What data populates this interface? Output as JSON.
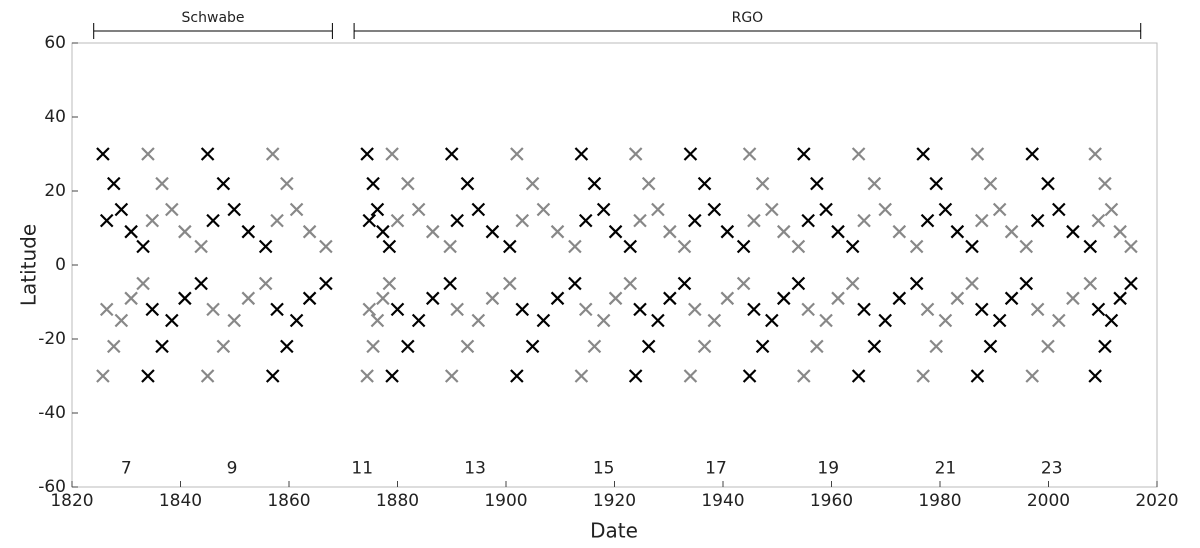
{
  "chart_data": {
    "type": "scatter",
    "xlabel": "Date",
    "ylabel": "Latitude",
    "xlim": [
      1820,
      2020
    ],
    "xticks": [
      1820,
      1840,
      1860,
      1880,
      1900,
      1920,
      1940,
      1960,
      1980,
      2000,
      2020
    ],
    "ylim": [
      -60,
      60
    ],
    "yticks": [
      -60,
      -40,
      -20,
      0,
      20,
      40,
      60
    ],
    "marker": "x",
    "series": [
      {
        "color": "#000000",
        "x": [
          1825.7,
          1826.4,
          1827.7,
          1829.1,
          1830.9,
          1833.1,
          1845,
          1846,
          1847.9,
          1849.9,
          1852.5,
          1855.7,
          1874.4,
          1874.8,
          1875.5,
          1876.3,
          1877.3,
          1878.5,
          1890,
          1891,
          1892.9,
          1894.9,
          1897.5,
          1900.7,
          1913.9,
          1914.7,
          1916.3,
          1918,
          1920.2,
          1922.9,
          1934,
          1934.8,
          1936.6,
          1938.4,
          1940.8,
          1943.8,
          1954.9,
          1955.7,
          1957.3,
          1959,
          1961.2,
          1963.9,
          1976.9,
          1977.7,
          1979.3,
          1981,
          1983.2,
          1985.9,
          1997,
          1998,
          1999.9,
          2001.9,
          2004.5,
          2007.7,
          1834,
          1834.8,
          1836.6,
          1838.4,
          1840.8,
          1843.8,
          1857,
          1857.8,
          1859.6,
          1861.4,
          1863.8,
          1866.8,
          1879,
          1880,
          1881.9,
          1883.9,
          1886.5,
          1889.7,
          1902,
          1903,
          1904.9,
          1906.9,
          1909.5,
          1912.7,
          1923.9,
          1924.7,
          1926.3,
          1928,
          1930.2,
          1932.9,
          1944.9,
          1945.7,
          1947.3,
          1949,
          1951.2,
          1953.9,
          1965,
          1966,
          1967.9,
          1969.9,
          1972.5,
          1975.7,
          1986.9,
          1987.7,
          1989.3,
          1991,
          1993.2,
          1995.9,
          2008.6,
          2009.2,
          2010.4,
          2011.6,
          2013.2,
          2015.2
        ],
        "values": [
          30,
          12,
          22,
          15,
          9,
          5,
          30,
          12,
          22,
          15,
          9,
          5,
          30,
          12,
          22,
          15,
          9,
          5,
          30,
          12,
          22,
          15,
          9,
          5,
          30,
          12,
          22,
          15,
          9,
          5,
          30,
          12,
          22,
          15,
          9,
          5,
          30,
          12,
          22,
          15,
          9,
          5,
          30,
          12,
          22,
          15,
          9,
          5,
          30,
          12,
          22,
          15,
          9,
          5,
          -30,
          -12,
          -22,
          -15,
          -9,
          -5,
          -30,
          -12,
          -22,
          -15,
          -9,
          -5,
          -30,
          -12,
          -22,
          -15,
          -9,
          -5,
          -30,
          -12,
          -22,
          -15,
          -9,
          -5,
          -30,
          -12,
          -22,
          -15,
          -9,
          -5,
          -30,
          -12,
          -22,
          -15,
          -9,
          -5,
          -30,
          -12,
          -22,
          -15,
          -9,
          -5,
          -30,
          -12,
          -22,
          -15,
          -9,
          -5,
          -30,
          -12,
          -22,
          -15,
          -9,
          -5
        ]
      },
      {
        "color": "#888888",
        "x": [
          1834,
          1834.8,
          1836.6,
          1838.4,
          1840.8,
          1843.8,
          1857,
          1857.8,
          1859.6,
          1861.4,
          1863.8,
          1866.8,
          1879,
          1880,
          1881.9,
          1883.9,
          1886.5,
          1889.7,
          1902,
          1903,
          1904.9,
          1906.9,
          1909.5,
          1912.7,
          1923.9,
          1924.7,
          1926.3,
          1928,
          1930.2,
          1932.9,
          1944.9,
          1945.7,
          1947.3,
          1949,
          1951.2,
          1953.9,
          1965,
          1966,
          1967.9,
          1969.9,
          1972.5,
          1975.7,
          1986.9,
          1987.7,
          1989.3,
          1991,
          1993.2,
          1995.9,
          2008.6,
          2009.2,
          2010.4,
          2011.6,
          2013.2,
          2015.2,
          1825.7,
          1826.4,
          1827.7,
          1829.1,
          1830.9,
          1833.1,
          1845,
          1846,
          1847.9,
          1849.9,
          1852.5,
          1855.7,
          1874.4,
          1874.8,
          1875.5,
          1876.3,
          1877.3,
          1878.5,
          1890,
          1891,
          1892.9,
          1894.9,
          1897.5,
          1900.7,
          1913.9,
          1914.7,
          1916.3,
          1918,
          1920.2,
          1922.9,
          1934,
          1934.8,
          1936.6,
          1938.4,
          1940.8,
          1943.8,
          1954.9,
          1955.7,
          1957.3,
          1959,
          1961.2,
          1963.9,
          1976.9,
          1977.7,
          1979.3,
          1981,
          1983.2,
          1985.9,
          1997,
          1998,
          1999.9,
          2001.9,
          2004.5,
          2007.7
        ],
        "values": [
          30,
          12,
          22,
          15,
          9,
          5,
          30,
          12,
          22,
          15,
          9,
          5,
          30,
          12,
          22,
          15,
          9,
          5,
          30,
          12,
          22,
          15,
          9,
          5,
          30,
          12,
          22,
          15,
          9,
          5,
          30,
          12,
          22,
          15,
          9,
          5,
          30,
          12,
          22,
          15,
          9,
          5,
          30,
          12,
          22,
          15,
          9,
          5,
          30,
          12,
          22,
          15,
          9,
          5,
          -30,
          -12,
          -22,
          -15,
          -9,
          -5,
          -30,
          -12,
          -22,
          -15,
          -9,
          -5,
          -30,
          -12,
          -22,
          -15,
          -9,
          -5,
          -30,
          -12,
          -22,
          -15,
          -9,
          -5,
          -30,
          -12,
          -22,
          -15,
          -9,
          -5,
          -30,
          -12,
          -22,
          -15,
          -9,
          -5,
          -30,
          -12,
          -22,
          -15,
          -9,
          -5,
          -30,
          -12,
          -22,
          -15,
          -9,
          -5,
          -30,
          -12,
          -22,
          -15,
          -9,
          -5
        ]
      }
    ],
    "cycle_labels": [
      {
        "label": "7",
        "x": 1830,
        "y": -55
      },
      {
        "label": "9",
        "x": 1849.5,
        "y": -55
      },
      {
        "label": "11",
        "x": 1873.5,
        "y": -55
      },
      {
        "label": "13",
        "x": 1894.3,
        "y": -55
      },
      {
        "label": "15",
        "x": 1918,
        "y": -55
      },
      {
        "label": "17",
        "x": 1938.7,
        "y": -55
      },
      {
        "label": "19",
        "x": 1959.4,
        "y": -55
      },
      {
        "label": "21",
        "x": 1981,
        "y": -55
      },
      {
        "label": "23",
        "x": 2000.6,
        "y": -55
      }
    ],
    "brackets": [
      {
        "label": "Schwabe",
        "x": [
          1824,
          1868
        ]
      },
      {
        "label": "RGO",
        "x": [
          1872,
          2017
        ]
      }
    ]
  }
}
